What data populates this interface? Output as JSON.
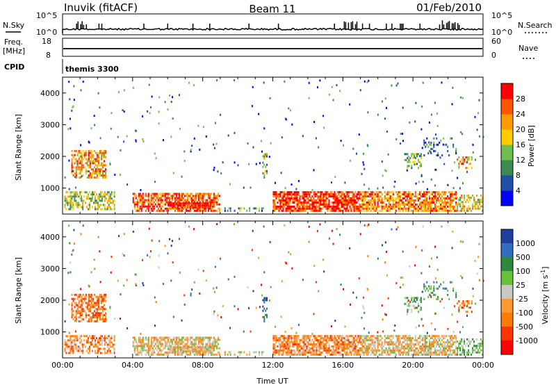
{
  "header": {
    "station": "Inuvik (fitACF)",
    "beam": "Beam 11",
    "date": "01/Feb/2010"
  },
  "nsky_panel": {
    "left_label": "N.Sky",
    "right_label": "N.Search",
    "right_ticks": [
      "10^5",
      "10^0"
    ],
    "left_ticks": [
      "10^5",
      "10^0"
    ]
  },
  "freq_panel": {
    "left_label_line1": "Freq.",
    "left_label_line2": "[MHz]",
    "left_ticks": [
      "18",
      "8"
    ],
    "right_label": "Nave",
    "right_ticks": [
      "60",
      "0"
    ]
  },
  "cpid": {
    "label": "CPID",
    "value": "themis 3300"
  },
  "colors": {
    "power": [
      "#0000ff",
      "#1f4fa8",
      "#3a8a52",
      "#6fbf4f",
      "#ffcc00",
      "#ff9900",
      "#ff5500",
      "#ff0000"
    ],
    "velocity": [
      "#1f3fa0",
      "#2f6ec0",
      "#2d8a3c",
      "#67c23a",
      "#c8c8c8",
      "#ff9933",
      "#ff7a00",
      "#ff3300",
      "#ff0000"
    ]
  },
  "chart_data": [
    {
      "type": "heatmap",
      "name": "power",
      "xlabel": "",
      "ylabel": "Slant Range [km]",
      "y_ticks": [
        "1000",
        "2000",
        "3000",
        "4000"
      ],
      "ylim": [
        180,
        4500
      ],
      "xlim_hours": [
        0,
        24
      ],
      "colorbar_label": "Power [dB]",
      "colorbar_ticks": [
        "4",
        "8",
        "12",
        "16",
        "20",
        "24",
        "28"
      ]
    },
    {
      "type": "heatmap",
      "name": "velocity",
      "xlabel": "Time UT",
      "ylabel": "Slant Range [km]",
      "y_ticks": [
        "1000",
        "2000",
        "3000",
        "4000"
      ],
      "ylim": [
        180,
        4500
      ],
      "x_ticks": [
        "00:00",
        "04:00",
        "08:00",
        "12:00",
        "16:00",
        "20:00",
        "00:00"
      ],
      "colorbar_label": "Velocity [m s^-1]",
      "colorbar_ticks": [
        "1000",
        "500",
        "100",
        "25",
        "-25",
        "-100",
        "-500",
        "-1000"
      ]
    }
  ]
}
